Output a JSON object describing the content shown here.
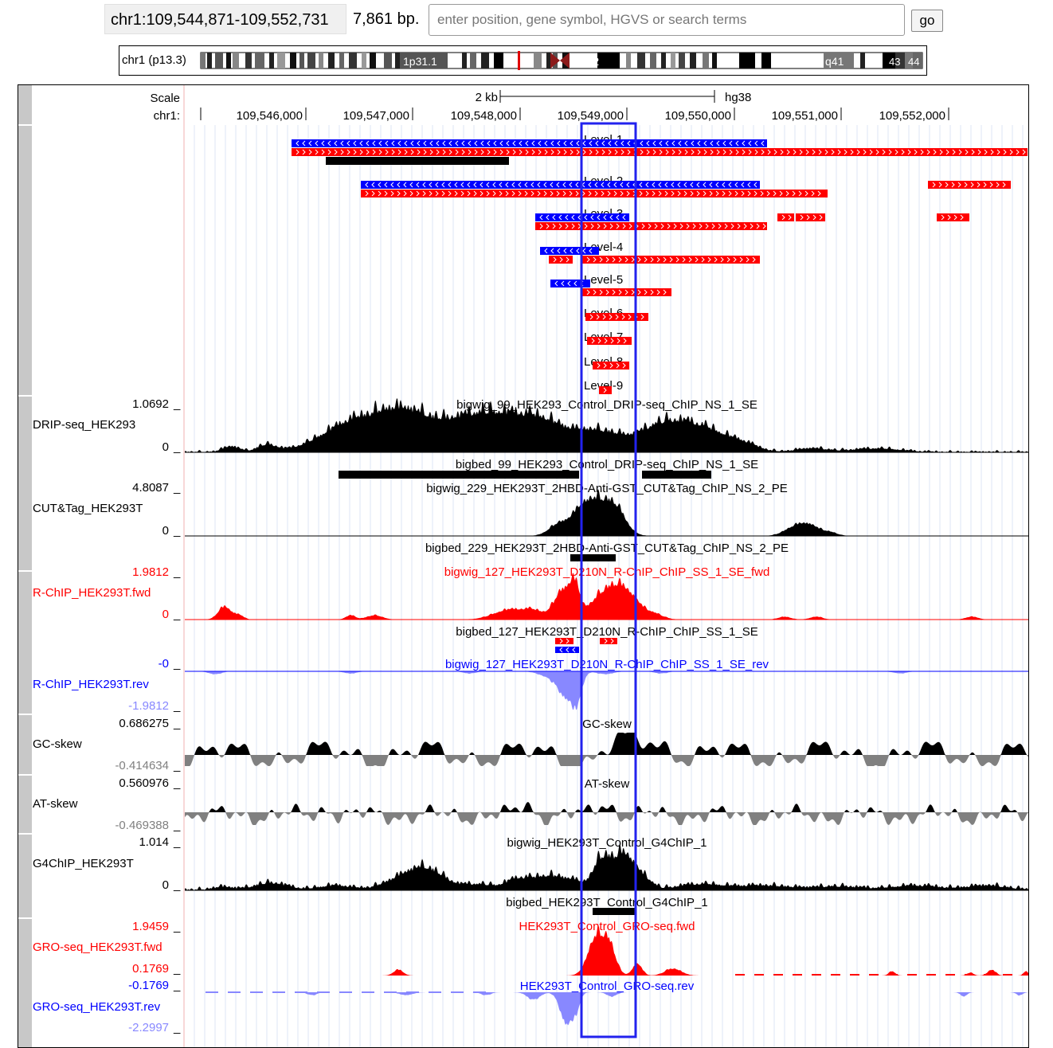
{
  "position": {
    "range": "chr1:109,544,871-109,552,731",
    "size": "7,861 bp.",
    "search_placeholder": "enter position, gene symbol, HGVS or search terms",
    "go_label": "go"
  },
  "ideogram": {
    "label": "chr1 (p13.3)",
    "bands": [
      "1p31.1",
      "1q12",
      "q41",
      "43",
      "44"
    ]
  },
  "ruler": {
    "scale_label": "Scale",
    "chrom_label": "chr1:",
    "scale_bar": "2 kb",
    "assembly": "hg38",
    "ticks": [
      "109,546,000",
      "109,547,000",
      "109,548,000",
      "109,549,000",
      "109,550,000",
      "109,551,000",
      "109,552,000"
    ]
  },
  "levels": [
    "Level-1",
    "Level-2",
    "Level-3",
    "Level-4",
    "Level-5",
    "Level-6",
    "Level-7",
    "Level-8",
    "Level-9"
  ],
  "tracks": [
    {
      "id": "drip",
      "label": "DRIP-seq_HEK293",
      "max": "1.0692",
      "min": "0",
      "title": "bigwig_99_HEK293_Control_DRIP-seq_ChIP_NS_1_SE",
      "bed": "bigbed_99_HEK293_Control_DRIP-seq_ChIP_NS_1_SE",
      "color": "#000000"
    },
    {
      "id": "cuttag",
      "label": "CUT&Tag_HEK293T",
      "max": "4.8087",
      "min": "0",
      "title": "bigwig_229_HEK293T_2HBD-Anti-GST_CUT&Tag_ChIP_NS_2_PE",
      "bed": "bigbed_229_HEK293T_2HBD-Anti-GST_CUT&Tag_ChIP_NS_2_PE",
      "color": "#000000"
    },
    {
      "id": "rchipfwd",
      "label": "R-ChIP_HEK293T.fwd",
      "max": "1.9812",
      "min": "0",
      "title": "bigwig_127_HEK293T_D210N_R-ChIP_ChIP_SS_1_SE_fwd",
      "bed": "bigbed_127_HEK293T_D210N_R-ChIP_ChIP_SS_1_SE",
      "color": "#ff0000"
    },
    {
      "id": "rchiprev",
      "label": "R-ChIP_HEK293T.rev",
      "max": "-0",
      "min": "-1.9812",
      "title": "bigwig_127_HEK293T_D210N_R-ChIP_ChIP_SS_1_SE_rev",
      "color": "#0000ff"
    },
    {
      "id": "gcskew",
      "label": "GC-skew",
      "max": "0.686275",
      "min": "-0.414634",
      "title": "GC-skew",
      "color": "#000000"
    },
    {
      "id": "atskew",
      "label": "AT-skew",
      "max": "0.560976",
      "min": "-0.469388",
      "title": "AT-skew",
      "color": "#000000"
    },
    {
      "id": "g4chip",
      "label": "G4ChIP_HEK293T",
      "max": "1.014",
      "min": "0",
      "title": "bigwig_HEK293T_Control_G4ChIP_1",
      "bed": "bigbed_HEK293T_Control_G4ChIP_1",
      "color": "#000000"
    },
    {
      "id": "grofwd",
      "label": "GRO-seq_HEK293T.fwd",
      "max": "1.9459",
      "min": "0.1769",
      "title": "HEK293T_Control_GRO-seq.fwd",
      "color": "#ff0000"
    },
    {
      "id": "grorev",
      "label": "GRO-seq_HEK293T.rev",
      "max": "-0.1769",
      "min": "-2.2997",
      "title": "HEK293T_Control_GRO-seq.rev",
      "color": "#0000ff"
    }
  ],
  "colors": {
    "minus_strand": "#0000ff",
    "plus_strand": "#ff0000",
    "highlight": "#2222ee",
    "neg_gray": "#808080",
    "light_blue": "#8888ff"
  }
}
